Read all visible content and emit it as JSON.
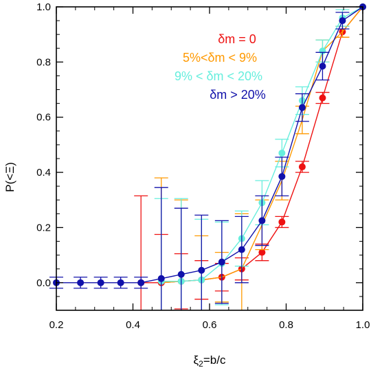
{
  "chart_data": {
    "type": "line",
    "xlabel": "ξ2=b/c",
    "ylabel": "P(<Ξ)",
    "xlim": [
      0.2,
      1.0
    ],
    "ylim": [
      -0.1,
      1.0
    ],
    "xticks": [
      "0.2",
      "0.4",
      "0.6",
      "0.8",
      "1.0"
    ],
    "yticks": [
      "0.0",
      "0.2",
      "0.4",
      "0.6",
      "0.8",
      "1.0"
    ],
    "grid": false,
    "legend_position": "top-right",
    "series": [
      {
        "name": "δm = 0",
        "color": "#ee1111",
        "x": [
          0.421,
          0.474,
          0.526,
          0.579,
          0.632,
          0.684,
          0.737,
          0.789,
          0.842,
          0.895,
          0.947,
          1.0
        ],
        "y": [
          0.0,
          0.0,
          0.005,
          0.01,
          0.02,
          0.05,
          0.11,
          0.22,
          0.42,
          0.67,
          0.91,
          1.0
        ],
        "yerr": [
          0.315,
          0.175,
          0.1,
          0.07,
          0.05,
          0.04,
          0.03,
          0.02,
          0.02,
          0.02,
          0.02,
          0.0
        ],
        "markers": true
      },
      {
        "name": "5%<δm < 9%",
        "color": "#ff9900",
        "x": [
          0.474,
          0.526,
          0.579,
          0.632,
          0.684,
          0.737,
          0.789,
          0.842,
          0.895,
          0.947,
          1.0
        ],
        "y": [
          0.0,
          0.005,
          0.01,
          0.02,
          0.05,
          0.21,
          0.37,
          0.59,
          0.84,
          0.91,
          1.0
        ],
        "yerr": [
          0.38,
          0.295,
          0.16,
          0.09,
          0.2,
          0.09,
          0.07,
          0.05,
          0.04,
          0.02,
          0.0
        ],
        "markers": false
      },
      {
        "name": "9% < δm < 20%",
        "color": "#66eedd",
        "x": [
          0.474,
          0.526,
          0.579,
          0.632,
          0.684,
          0.737,
          0.789,
          0.842,
          0.895,
          0.947,
          1.0
        ],
        "y": [
          0.005,
          0.005,
          0.01,
          0.07,
          0.16,
          0.29,
          0.47,
          0.66,
          0.84,
          0.96,
          1.0
        ],
        "yerr": [
          0.3,
          0.3,
          0.22,
          0.15,
          0.1,
          0.08,
          0.05,
          0.05,
          0.04,
          0.03,
          0.0
        ],
        "markers": true
      },
      {
        "name": "δm > 20%",
        "color": "#1111aa",
        "x": [
          0.2,
          0.263,
          0.316,
          0.368,
          0.421,
          0.474,
          0.526,
          0.579,
          0.632,
          0.684,
          0.737,
          0.789,
          0.842,
          0.895,
          0.947,
          1.0
        ],
        "y": [
          0.0,
          0.0,
          0.0,
          0.0,
          0.0,
          0.015,
          0.03,
          0.045,
          0.075,
          0.12,
          0.225,
          0.385,
          0.635,
          0.785,
          0.95,
          1.0
        ],
        "yerr": [
          0.02,
          0.02,
          0.02,
          0.02,
          0.02,
          0.33,
          0.24,
          0.2,
          0.15,
          0.12,
          0.09,
          0.07,
          0.05,
          0.05,
          0.03,
          0.0
        ],
        "markers": true
      }
    ]
  }
}
